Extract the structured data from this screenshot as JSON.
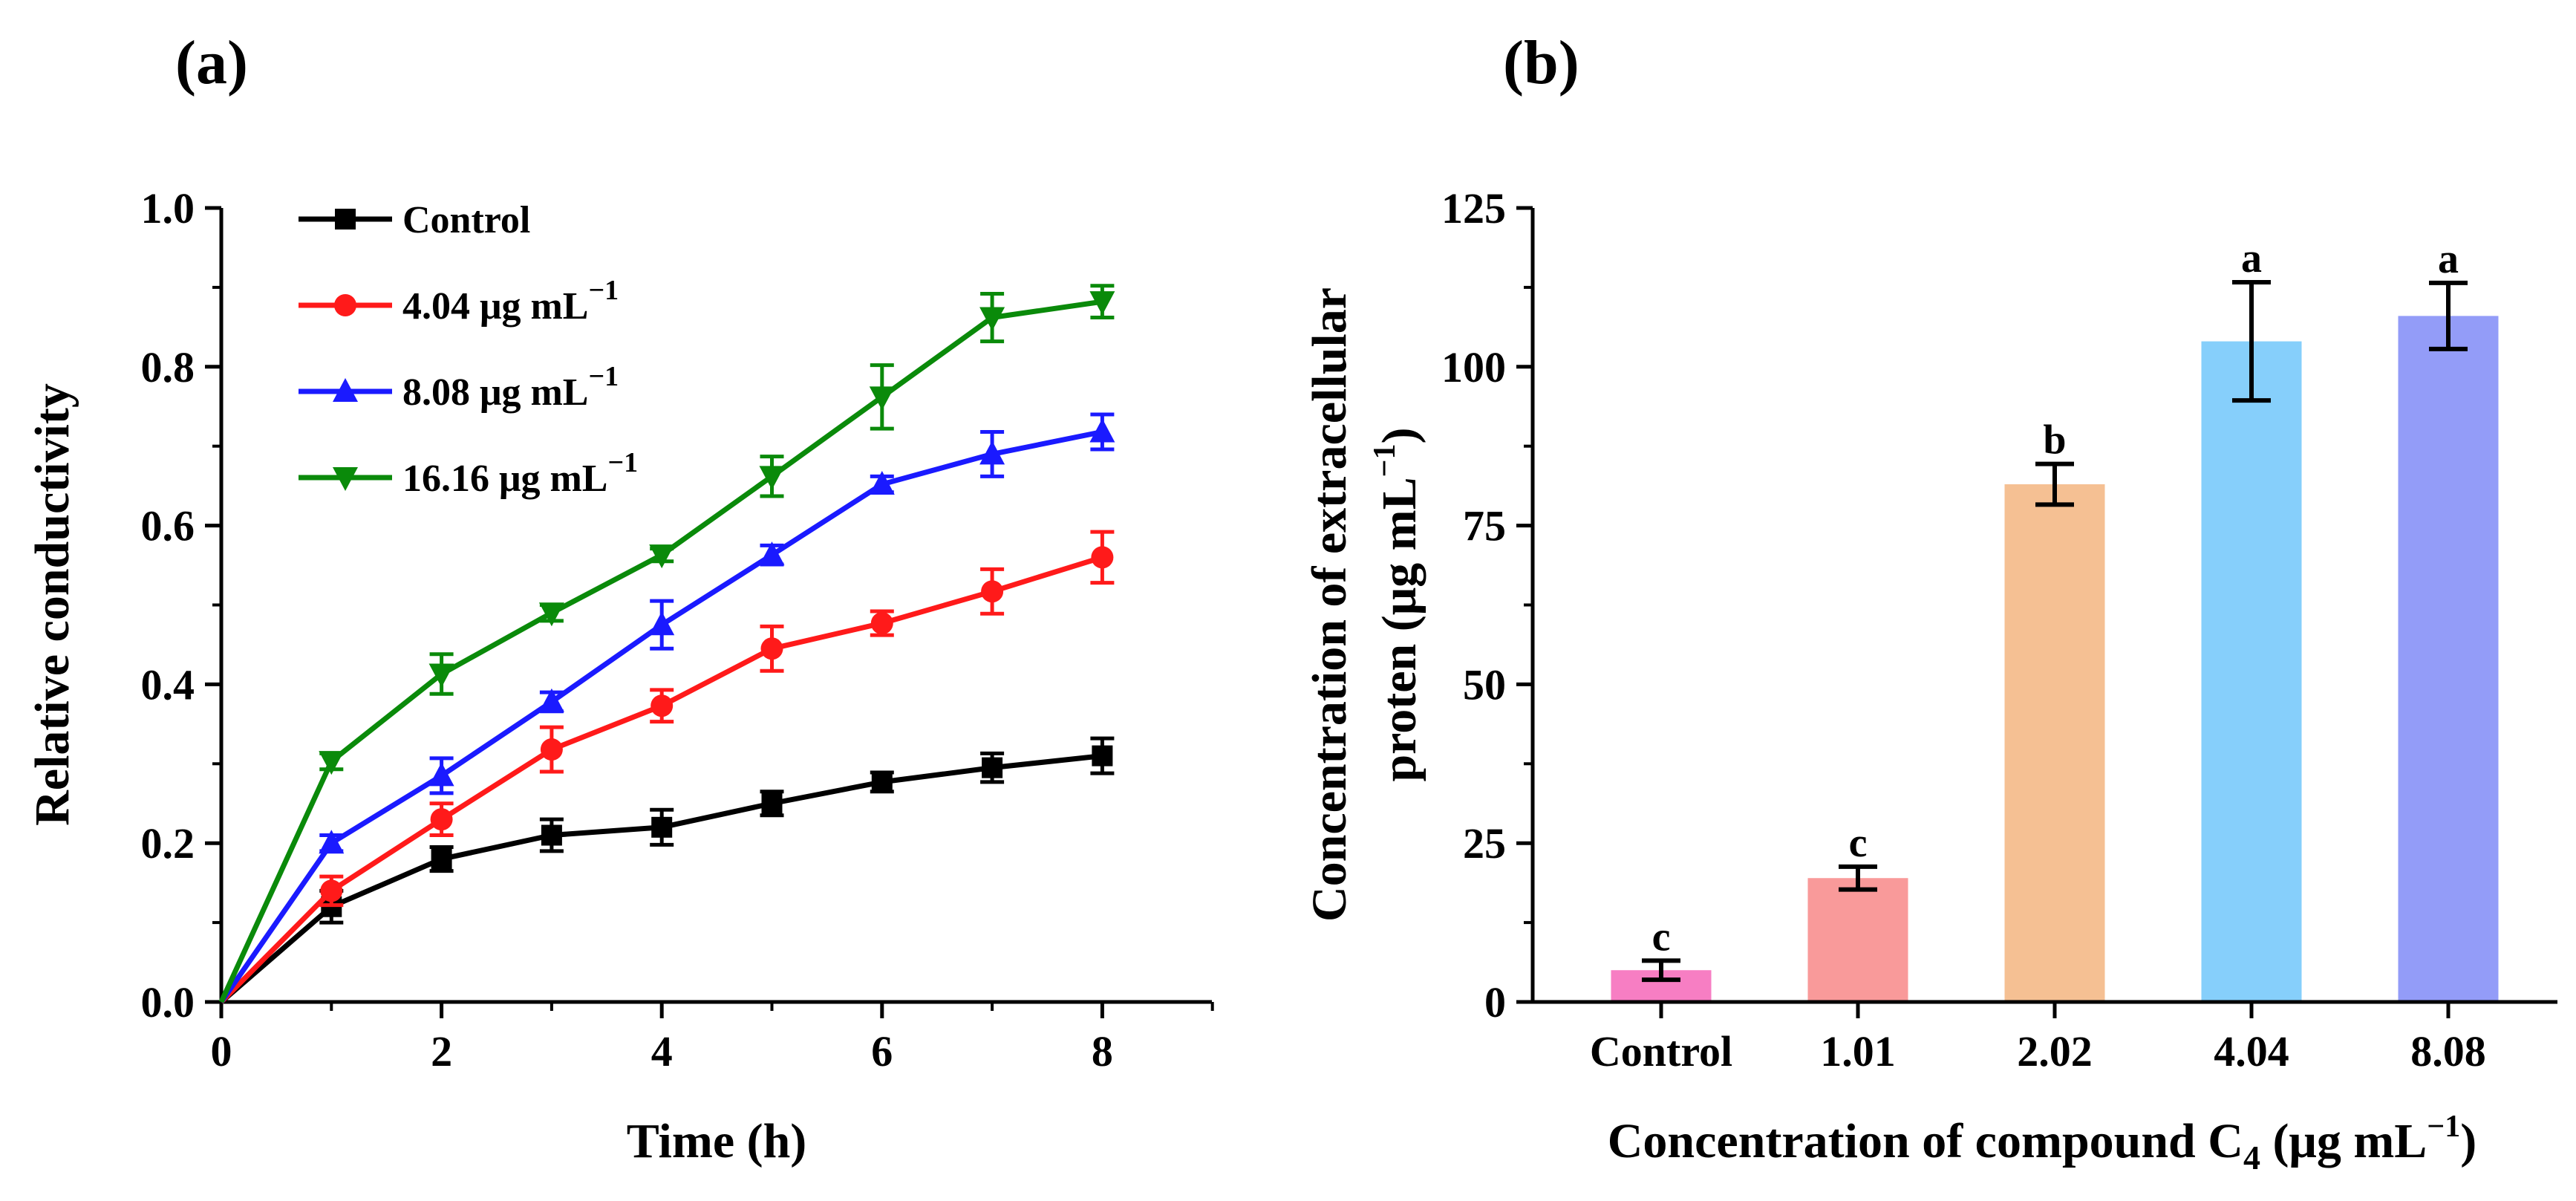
{
  "chart_data": [
    {
      "panel_label": "(a)",
      "type": "line",
      "xlabel": "Time (h)",
      "ylabel": "Relative conductivity",
      "xlim": [
        0,
        9
      ],
      "ylim": [
        0,
        1.0
      ],
      "xticks": [
        "0",
        "2",
        "4",
        "6",
        "8"
      ],
      "yticks": [
        "0.0",
        "0.2",
        "0.4",
        "0.6",
        "0.8",
        "1.0"
      ],
      "x": [
        0,
        1,
        2,
        3,
        4,
        5,
        6,
        7,
        8
      ],
      "legend_position": "top-left",
      "series": [
        {
          "name": "Control",
          "name_main": "Control",
          "name_sup": "",
          "color": "#000000",
          "marker": "square",
          "values": [
            0,
            0.12,
            0.18,
            0.21,
            0.22,
            0.25,
            0.277,
            0.295,
            0.31
          ],
          "errors": [
            0,
            0.02,
            0.015,
            0.02,
            0.022,
            0.015,
            0.012,
            0.018,
            0.022
          ]
        },
        {
          "name": "4.04 μg mL−1",
          "name_main": "4.04 μg mL",
          "name_sup": "−1",
          "color": "#ff1a1a",
          "marker": "circle",
          "values": [
            0,
            0.14,
            0.23,
            0.318,
            0.373,
            0.445,
            0.477,
            0.517,
            0.56
          ],
          "errors": [
            0,
            0.018,
            0.02,
            0.028,
            0.02,
            0.028,
            0.015,
            0.028,
            0.032
          ]
        },
        {
          "name": "8.08 μg mL−1",
          "name_main": "8.08 μg mL",
          "name_sup": "−1",
          "color": "#1a1aff",
          "marker": "triangle-up",
          "values": [
            0,
            0.2,
            0.285,
            0.378,
            0.475,
            0.563,
            0.652,
            0.69,
            0.718
          ],
          "errors": [
            0,
            0.01,
            0.022,
            0.012,
            0.03,
            0.012,
            0.01,
            0.028,
            0.022
          ]
        },
        {
          "name": "16.16 μg mL−1",
          "name_main": "16.16 μg mL",
          "name_sup": "−1",
          "color": "#0a8a0a",
          "marker": "triangle-down",
          "values": [
            0,
            0.303,
            0.413,
            0.49,
            0.563,
            0.662,
            0.762,
            0.862,
            0.882
          ],
          "errors": [
            0,
            0.01,
            0.025,
            0.01,
            0.008,
            0.025,
            0.04,
            0.03,
            0.02
          ]
        }
      ]
    },
    {
      "panel_label": "(b)",
      "type": "bar",
      "xlabel": "Concentration of compound C4 (μg mL−1)",
      "xlabel_parts": {
        "pre": "Concentration of compound C",
        "sub": "4",
        "mid": " (μg mL",
        "sup": "−1",
        "post": ")"
      },
      "ylabel": "Concentration of extracellular proten (μg mL−1)",
      "ylabel_parts": {
        "line1": "Concentration of extracellular",
        "line2_pre": "proten (μg mL",
        "line2_sup": "−1",
        "line2_post": ")"
      },
      "ylim": [
        0,
        125
      ],
      "yticks": [
        "0",
        "25",
        "50",
        "75",
        "100",
        "125"
      ],
      "categories": [
        "Control",
        "1.01",
        "2.02",
        "4.04",
        "8.08"
      ],
      "values": [
        5,
        19.5,
        81.5,
        104,
        108
      ],
      "errors": [
        1.5,
        1.8,
        3.2,
        9.3,
        5.2
      ],
      "significance": [
        "c",
        "c",
        "b",
        "a",
        "a"
      ],
      "colors": [
        "#f77ec3",
        "#f99a9a",
        "#f5c093",
        "#86cffb",
        "#939cf8"
      ]
    }
  ]
}
